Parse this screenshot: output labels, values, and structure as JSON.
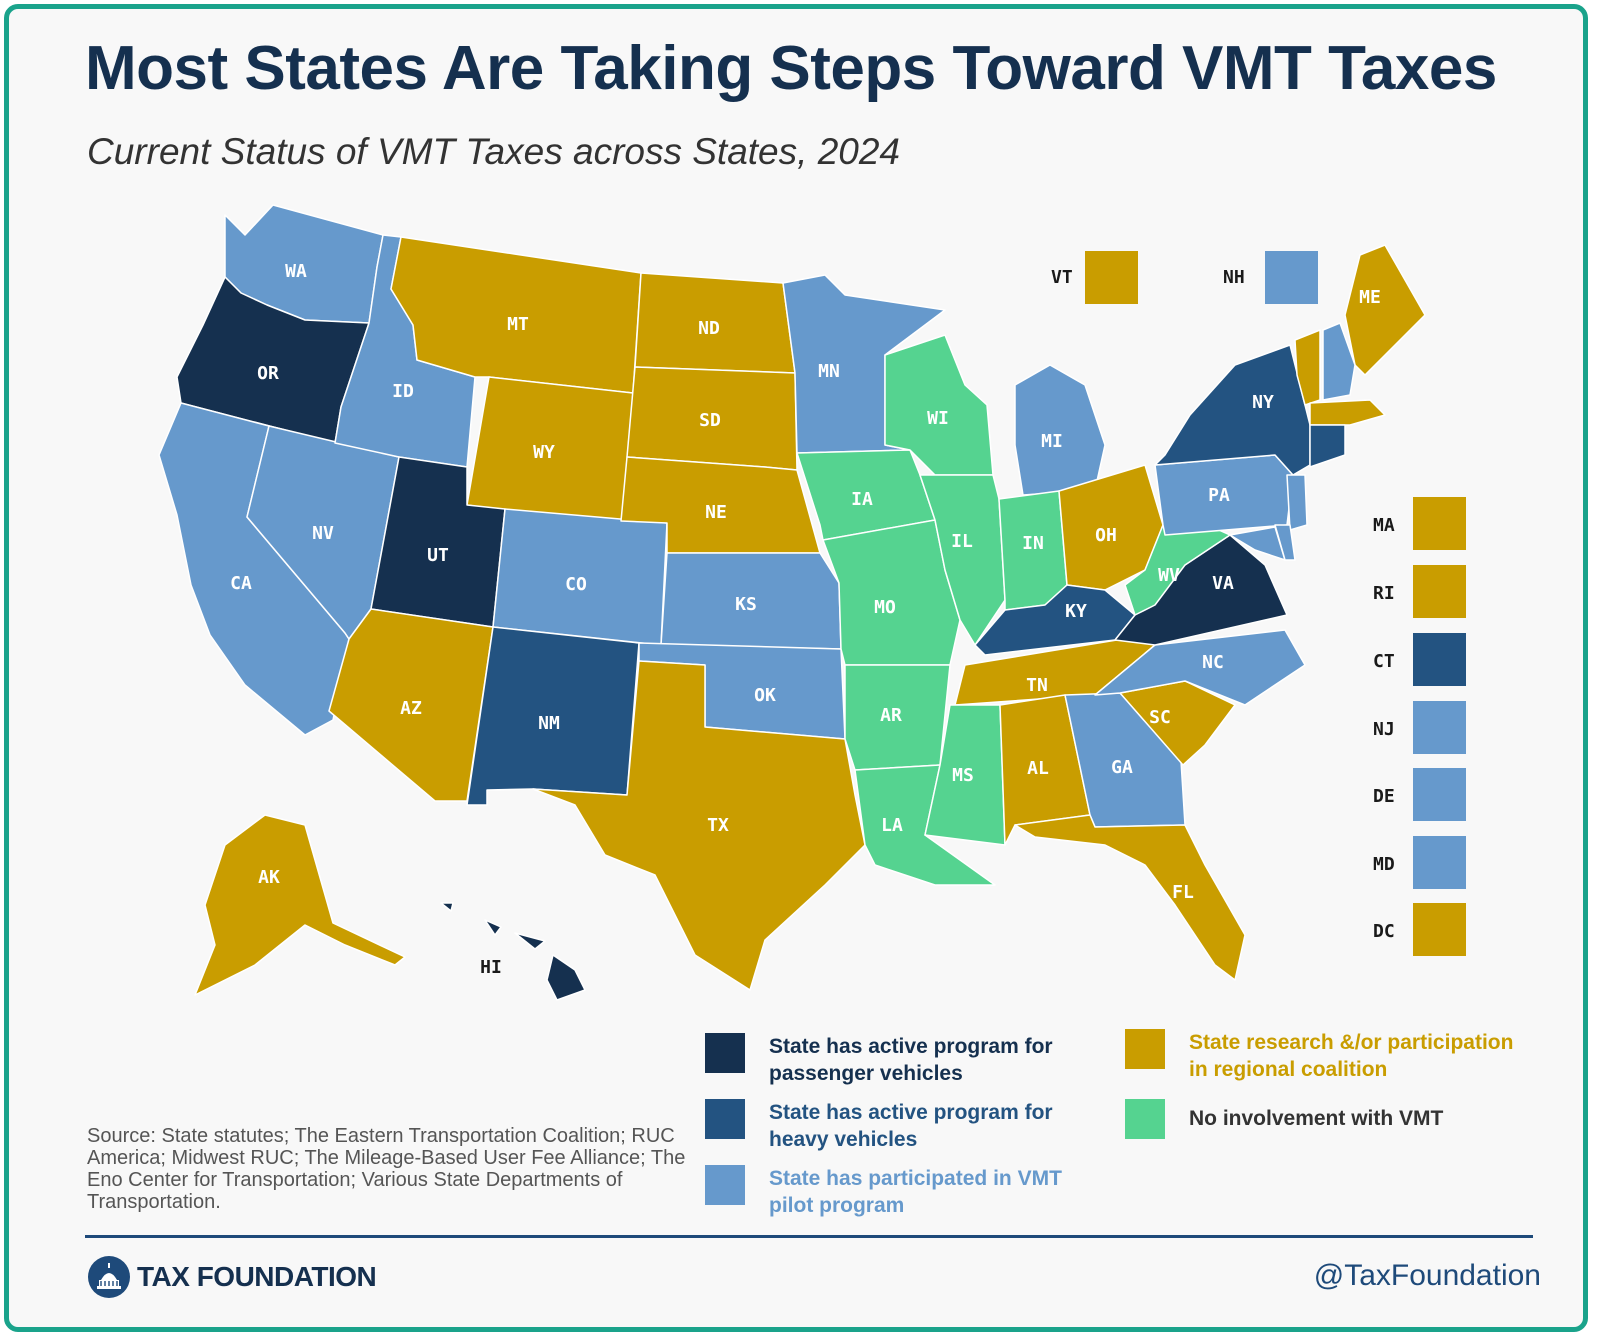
{
  "title": "Most States Are Taking Steps Toward VMT Taxes",
  "subtitle": "Current Status of VMT Taxes across States, 2024",
  "colors": {
    "passenger": "#15304f",
    "heavy": "#235381",
    "pilot": "#6699cc",
    "research": "#c99d00",
    "none": "#55d390"
  },
  "legend": [
    {
      "key": "passenger",
      "label": "State has active program for\npassenger vehicles"
    },
    {
      "key": "heavy",
      "label": "State has active program for\nheavy vehicles"
    },
    {
      "key": "pilot",
      "label": "State has participated in VMT\npilot program"
    },
    {
      "key": "research",
      "label": "State research &/or participation\nin regional coalition"
    },
    {
      "key": "none",
      "label": "No involvement with VMT"
    }
  ],
  "states": {
    "WA": "pilot",
    "OR": "passenger",
    "CA": "pilot",
    "NV": "pilot",
    "ID": "pilot",
    "MT": "research",
    "WY": "research",
    "UT": "passenger",
    "AZ": "research",
    "CO": "pilot",
    "NM": "heavy",
    "ND": "research",
    "SD": "research",
    "NE": "research",
    "KS": "pilot",
    "OK": "pilot",
    "TX": "research",
    "MN": "pilot",
    "IA": "none",
    "MO": "none",
    "AR": "none",
    "LA": "none",
    "WI": "none",
    "IL": "none",
    "MI": "pilot",
    "IN": "none",
    "OH": "research",
    "KY": "heavy",
    "TN": "research",
    "MS": "none",
    "AL": "research",
    "GA": "pilot",
    "FL": "research",
    "SC": "research",
    "NC": "pilot",
    "VA": "passenger",
    "WV": "none",
    "PA": "pilot",
    "NY": "heavy",
    "ME": "research",
    "AK": "research",
    "HI": "passenger"
  },
  "side_states": [
    {
      "abbr": "VT",
      "key": "research"
    },
    {
      "abbr": "NH",
      "key": "pilot"
    },
    {
      "abbr": "MA",
      "key": "research"
    },
    {
      "abbr": "RI",
      "key": "research"
    },
    {
      "abbr": "CT",
      "key": "heavy"
    },
    {
      "abbr": "NJ",
      "key": "pilot"
    },
    {
      "abbr": "DE",
      "key": "pilot"
    },
    {
      "abbr": "MD",
      "key": "pilot"
    },
    {
      "abbr": "DC",
      "key": "research"
    }
  ],
  "source": "Source:  State statutes; The Eastern Transportation Coalition; RUC America; Midwest RUC; The Mileage-Based User Fee Alliance; The Eno Center for Transportation; Various State Departments of Transportation.",
  "logo_text": "TAX FOUNDATION",
  "handle": "@TaxFoundation"
}
